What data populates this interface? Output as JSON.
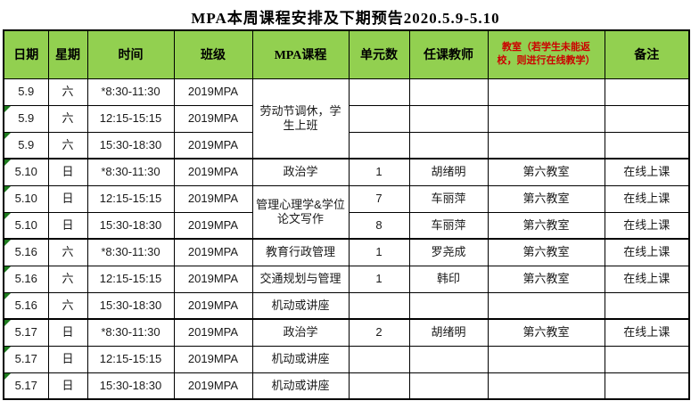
{
  "page": {
    "title": "MPA本周课程安排及下期预告2020.5.9-5.10"
  },
  "colors": {
    "header_green": "#92D050",
    "note_red": "#CC0000",
    "triangle_green": "#1E7B1E",
    "border_black": "#000000"
  },
  "table": {
    "headers": [
      {
        "label": "日期"
      },
      {
        "label": "星期"
      },
      {
        "label": "时间"
      },
      {
        "label": "班级"
      },
      {
        "label": "MPA课程"
      },
      {
        "label": "单元数"
      },
      {
        "label": "任课教师"
      },
      {
        "label": "教室（若学生未能返校，则进行在线教学）",
        "red": true
      },
      {
        "label": "备注"
      }
    ],
    "rows": [
      {
        "date": "5.9",
        "day": "六",
        "time": "*8:30-11:30",
        "class": "2019MPA",
        "course": {
          "text": "劳动节调休，学生上班",
          "rowspan": 3
        },
        "units": "",
        "teacher": "",
        "room": "",
        "remark": "",
        "triangle": false,
        "group_start": false
      },
      {
        "date": "5.9",
        "day": "六",
        "time": "12:15-15:15",
        "class": "2019MPA",
        "course": {
          "merged": true
        },
        "units": "",
        "teacher": "",
        "room": "",
        "remark": "",
        "triangle": true,
        "group_start": false
      },
      {
        "date": "5.9",
        "day": "六",
        "time": "15:30-18:30",
        "class": "2019MPA",
        "course": {
          "merged": true
        },
        "units": "",
        "teacher": "",
        "room": "",
        "remark": "",
        "triangle": true,
        "group_start": false
      },
      {
        "date": "5.10",
        "day": "日",
        "time": "*8:30-11:30",
        "class": "2019MPA",
        "course": {
          "text": "政治学"
        },
        "units": "1",
        "teacher": "胡绪明",
        "room": "第六教室",
        "remark": "在线上课",
        "triangle": true,
        "group_start": true
      },
      {
        "date": "5.10",
        "day": "日",
        "time": "12:15-15:15",
        "class": "2019MPA",
        "course": {
          "text": "管理心理学&学位论文写作",
          "rowspan": 2
        },
        "units": "7",
        "teacher": "车丽萍",
        "room": "第六教室",
        "remark": "在线上课",
        "triangle": true,
        "group_start": false
      },
      {
        "date": "5.10",
        "day": "日",
        "time": "15:30-18:30",
        "class": "2019MPA",
        "course": {
          "merged": true
        },
        "units": "8",
        "teacher": "车丽萍",
        "room": "第六教室",
        "remark": "在线上课",
        "triangle": true,
        "group_start": false
      },
      {
        "date": "5.16",
        "day": "六",
        "time": "*8:30-11:30",
        "class": "2019MPA",
        "course": {
          "text": "教育行政管理"
        },
        "units": "1",
        "teacher": "罗尧成",
        "room": "第六教室",
        "remark": "在线上课",
        "triangle": true,
        "group_start": true
      },
      {
        "date": "5.16",
        "day": "六",
        "time": "12:15-15:15",
        "class": "2019MPA",
        "course": {
          "text": "交通规划与管理"
        },
        "units": "1",
        "teacher": "韩印",
        "room": "第六教室",
        "remark": "在线上课",
        "triangle": true,
        "group_start": false
      },
      {
        "date": "5.16",
        "day": "六",
        "time": "15:30-18:30",
        "class": "2019MPA",
        "course": {
          "text": "机动或讲座"
        },
        "units": "",
        "teacher": "",
        "room": "",
        "remark": "",
        "triangle": true,
        "group_start": false
      },
      {
        "date": "5.17",
        "day": "日",
        "time": "*8:30-11:30",
        "class": "2019MPA",
        "course": {
          "text": "政治学"
        },
        "units": "2",
        "teacher": "胡绪明",
        "room": "第六教室",
        "remark": "在线上课",
        "triangle": true,
        "group_start": true
      },
      {
        "date": "5.17",
        "day": "日",
        "time": "12:15-15:15",
        "class": "2019MPA",
        "course": {
          "text": "机动或讲座"
        },
        "units": "",
        "teacher": "",
        "room": "",
        "remark": "",
        "triangle": true,
        "group_start": false
      },
      {
        "date": "5.17",
        "day": "日",
        "time": "15:30-18:30",
        "class": "2019MPA",
        "course": {
          "text": "机动或讲座"
        },
        "units": "",
        "teacher": "",
        "room": "",
        "remark": "",
        "triangle": true,
        "group_start": false
      }
    ]
  }
}
